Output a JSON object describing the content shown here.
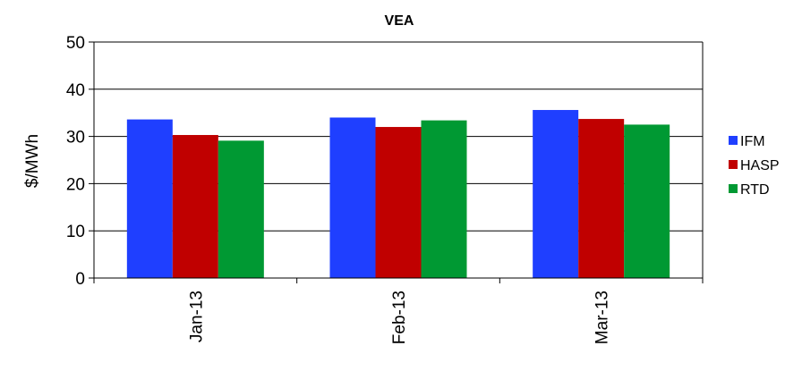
{
  "chart_data": {
    "type": "bar",
    "title": "VEA",
    "xlabel": "",
    "ylabel": "$/MWh",
    "categories": [
      "Jan-13",
      "Feb-13",
      "Mar-13"
    ],
    "series": [
      {
        "name": "IFM",
        "values": [
          33.6,
          34.0,
          35.6
        ],
        "color": "#1f3fff"
      },
      {
        "name": "HASP",
        "values": [
          30.3,
          32.0,
          33.7
        ],
        "color": "#c00000"
      },
      {
        "name": "RTD",
        "values": [
          29.1,
          33.4,
          32.5
        ],
        "color": "#009933"
      }
    ],
    "ylim": [
      0,
      50
    ],
    "yticks": [
      "0",
      "10",
      "20",
      "30",
      "40",
      "50"
    ],
    "grid": true,
    "legend_position": "right"
  }
}
